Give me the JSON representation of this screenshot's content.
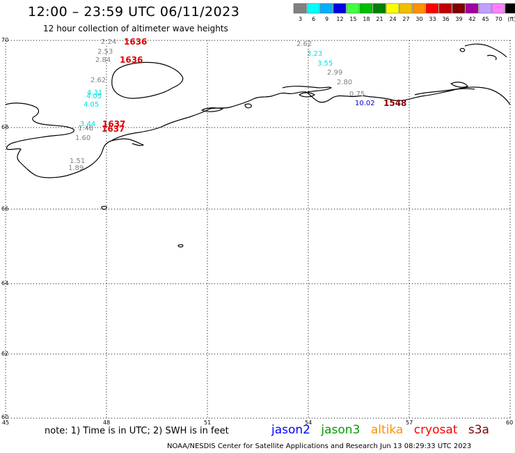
{
  "title": "12:00 – 23:59 UTC 06/11/2023",
  "subtitle": "12 hour collection of altimeter wave heights",
  "colorbar": {
    "labels": [
      "3",
      "6",
      "9",
      "12",
      "15",
      "18",
      "21",
      "24",
      "27",
      "30",
      "33",
      "36",
      "39",
      "42",
      "45",
      "70",
      "(ft)"
    ],
    "colors": [
      "#808080",
      "#00ffff",
      "#00b0ff",
      "#0000e0",
      "#40ff40",
      "#00c000",
      "#008000",
      "#ffff00",
      "#f0c000",
      "#ff9000",
      "#ff0000",
      "#c00000",
      "#800000",
      "#a000a0",
      "#c0a0ff",
      "#ff80ff",
      "#000000"
    ]
  },
  "map": {
    "lon_labels": [
      "45",
      "48",
      "51",
      "54",
      "57",
      "60"
    ],
    "lat_labels": [
      "70",
      "68",
      "66",
      "64",
      "62",
      "60"
    ],
    "lon_range": [
      45,
      60
    ],
    "lat_range": [
      60,
      70
    ]
  },
  "pass_labels": [
    {
      "text": "1636",
      "color": "#e00000"
    },
    {
      "text": "1636",
      "color": "#e00000"
    },
    {
      "text": "1637",
      "color": "#e00000"
    },
    {
      "text": "1637",
      "color": "#e00000"
    },
    {
      "text": "1548",
      "color": "#800000"
    }
  ],
  "observations": [
    {
      "text": "2.24",
      "color": "#808080"
    },
    {
      "text": "2.53",
      "color": "#808080"
    },
    {
      "text": "2.84",
      "color": "#808080"
    },
    {
      "text": "2.62",
      "color": "#808080"
    },
    {
      "text": "4.31",
      "color": "#00e0e0"
    },
    {
      "text": "4.05",
      "color": "#00e0e0"
    },
    {
      "text": "4.05",
      "color": "#00e0e0"
    },
    {
      "text": "3.44",
      "color": "#00e0e0"
    },
    {
      "text": "1.48",
      "color": "#808080"
    },
    {
      "text": "1.60",
      "color": "#808080"
    },
    {
      "text": "1.51",
      "color": "#808080"
    },
    {
      "text": "1.89",
      "color": "#808080"
    },
    {
      "text": "2.62",
      "color": "#808080"
    },
    {
      "text": "3.23",
      "color": "#00e0e0"
    },
    {
      "text": "3.55",
      "color": "#00e0e0"
    },
    {
      "text": "2.99",
      "color": "#808080"
    },
    {
      "text": "2.80",
      "color": "#808080"
    },
    {
      "text": "0.75",
      "color": "#808080"
    },
    {
      "text": "10.02",
      "color": "#0000c0"
    }
  ],
  "note": "note: 1) Time is in UTC; 2) SWH is in feet",
  "satellites": [
    {
      "name": "jason2",
      "color": "#0000ff"
    },
    {
      "name": "jason3",
      "color": "#00a000"
    },
    {
      "name": "altika",
      "color": "#ff9000"
    },
    {
      "name": "cryosat",
      "color": "#ff0000"
    },
    {
      "name": "s3a",
      "color": "#800000"
    }
  ],
  "footer": "NOAA/NESDIS Center for Satellite Applications and Research   Jun 13 08:29:33 UTC 2023"
}
